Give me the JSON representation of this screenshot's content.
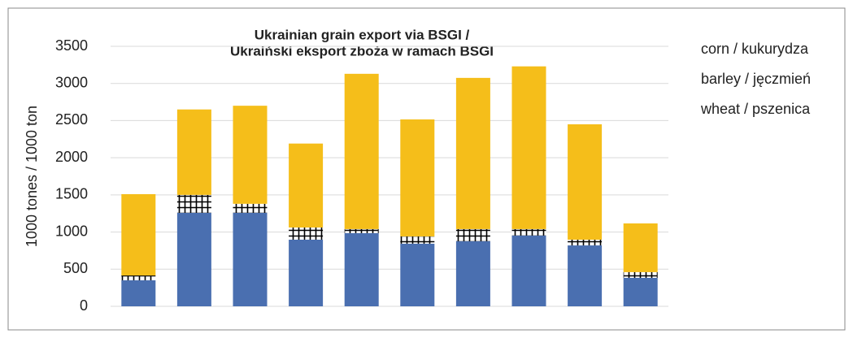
{
  "chart_data": {
    "type": "stacked_bar",
    "title": [
      "Ukrainian grain export via BSGI /",
      "Ukraiński eksport zboża w ramach BSGI"
    ],
    "y_label": "1000 tones / 1000 ton",
    "categories": [
      null,
      null,
      null,
      null,
      null,
      null,
      null,
      null,
      null,
      null
    ],
    "series": [
      {
        "name": "wheat / pszenica",
        "color": "#4a6fb0",
        "values": [
          350,
          1258,
          1258,
          897,
          985,
          843,
          875,
          952,
          820,
          383
        ]
      },
      {
        "name": "barley / jęczmień",
        "color": "#000000",
        "pattern": "grid",
        "values": [
          65,
          242,
          122,
          164,
          55,
          98,
          165,
          88,
          77,
          77
        ]
      },
      {
        "name": "corn / kukurydza",
        "color": "#f5be1a",
        "values": [
          1095,
          1150,
          1320,
          1130,
          2090,
          1575,
          2035,
          2190,
          1553,
          656
        ]
      }
    ],
    "ylim": [
      0,
      3500
    ],
    "yticks": [
      0,
      500,
      1000,
      1500,
      2000,
      2500,
      3000,
      3500
    ],
    "grid": true,
    "legend": "right"
  }
}
